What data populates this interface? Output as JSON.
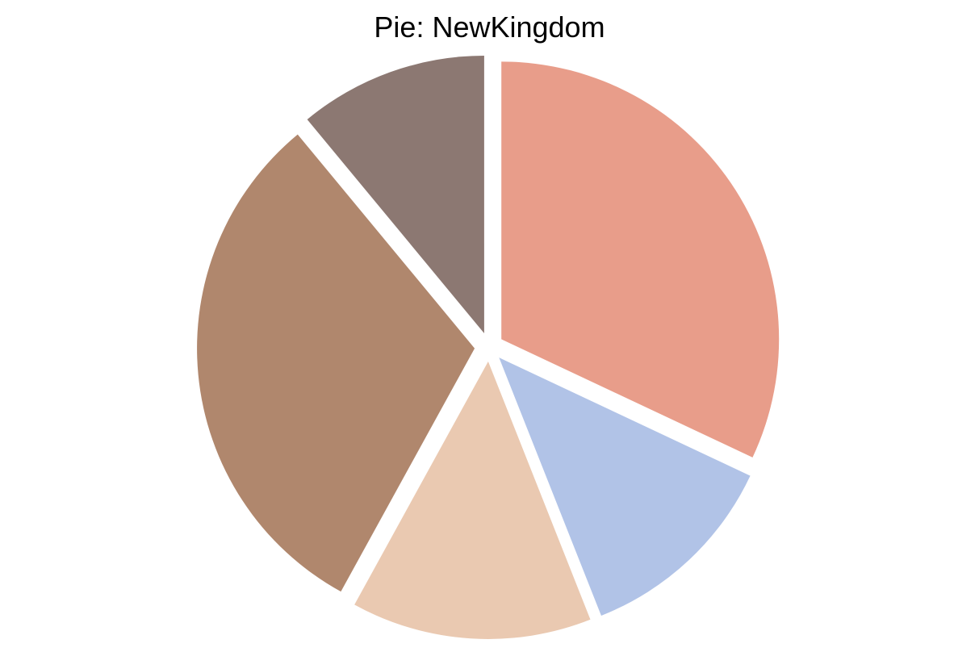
{
  "chart_data": {
    "type": "pie",
    "title": "Pie: NewKingdom",
    "slices": [
      {
        "value": 32,
        "color": "#e89d8a"
      },
      {
        "value": 12,
        "color": "#b1c3e7"
      },
      {
        "value": 14,
        "color": "#eac9b1"
      },
      {
        "value": 31,
        "color": "#b0876d"
      },
      {
        "value": 11,
        "color": "#8c7872"
      }
    ],
    "start_angle_deg": 0,
    "direction": "clockwise",
    "exploded": true,
    "legend": "none"
  }
}
